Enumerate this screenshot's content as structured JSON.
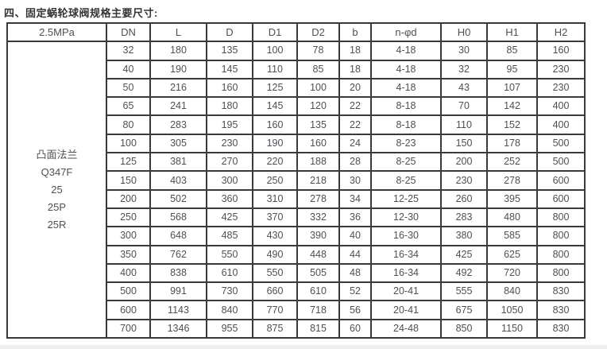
{
  "page": {
    "title": "四、固定蜗轮球阀规格主要尺寸:"
  },
  "table": {
    "pressure_label": "2.5MPa",
    "columns": [
      "DN",
      "L",
      "D",
      "D1",
      "D2",
      "b",
      "n-φd",
      "H0",
      "H1",
      "H2"
    ],
    "series_label_lines": [
      "凸面法兰",
      "Q347F",
      "25",
      "25P",
      "25R"
    ],
    "rows": [
      [
        "32",
        "180",
        "135",
        "100",
        "78",
        "18",
        "4-18",
        "30",
        "85",
        "160"
      ],
      [
        "40",
        "190",
        "145",
        "110",
        "85",
        "18",
        "4-18",
        "32",
        "95",
        "230"
      ],
      [
        "50",
        "216",
        "160",
        "125",
        "100",
        "20",
        "4-18",
        "43",
        "107",
        "230"
      ],
      [
        "65",
        "241",
        "180",
        "145",
        "120",
        "22",
        "8-18",
        "70",
        "142",
        "400"
      ],
      [
        "80",
        "283",
        "195",
        "160",
        "135",
        "22",
        "8-18",
        "110",
        "152",
        "400"
      ],
      [
        "100",
        "305",
        "230",
        "190",
        "160",
        "24",
        "8-23",
        "150",
        "178",
        "500"
      ],
      [
        "125",
        "381",
        "270",
        "220",
        "188",
        "28",
        "8-25",
        "200",
        "252",
        "500"
      ],
      [
        "150",
        "403",
        "300",
        "250",
        "218",
        "30",
        "8-25",
        "230",
        "278",
        "600"
      ],
      [
        "200",
        "502",
        "360",
        "310",
        "278",
        "34",
        "12-25",
        "260",
        "395",
        "600"
      ],
      [
        "250",
        "568",
        "425",
        "370",
        "332",
        "36",
        "12-30",
        "283",
        "480",
        "800"
      ],
      [
        "300",
        "648",
        "485",
        "430",
        "390",
        "40",
        "16-30",
        "380",
        "585",
        "800"
      ],
      [
        "350",
        "762",
        "550",
        "490",
        "448",
        "44",
        "16-34",
        "425",
        "625",
        "800"
      ],
      [
        "400",
        "838",
        "610",
        "550",
        "505",
        "48",
        "16-34",
        "492",
        "720",
        "800"
      ],
      [
        "500",
        "991",
        "730",
        "660",
        "610",
        "52",
        "20-41",
        "555",
        "840",
        "830"
      ],
      [
        "600",
        "1143",
        "840",
        "770",
        "718",
        "56",
        "20-41",
        "675",
        "1050",
        "830"
      ],
      [
        "700",
        "1346",
        "955",
        "875",
        "815",
        "60",
        "24-48",
        "850",
        "1150",
        "830"
      ]
    ]
  },
  "colors": {
    "border": "#3a3a3a",
    "text": "#4d5055",
    "title": "#333333",
    "bottom_strip": "#f0eeee"
  }
}
